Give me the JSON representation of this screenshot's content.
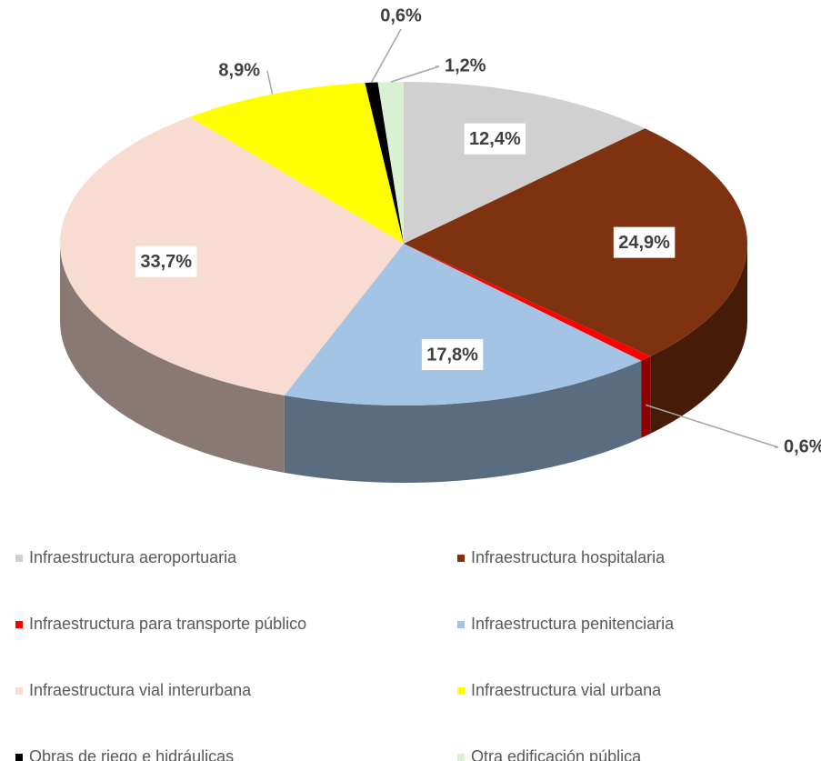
{
  "chart_data": {
    "type": "pie",
    "categories": [
      "Infraestructura aeroportuaria",
      "Infraestructura hospitalaria",
      "Infraestructura para transporte público",
      "Infraestructura penitenciaria",
      "Infraestructura vial interurbana",
      "Infraestructura vial urbana",
      "Obras de riego e hidráulicas",
      "Otra edificación pública"
    ],
    "values": [
      12.4,
      24.9,
      0.6,
      17.8,
      33.7,
      8.9,
      0.6,
      1.2
    ],
    "value_labels": [
      "12,4%",
      "24,9%",
      "0,6%",
      "17,8%",
      "33,7%",
      "8,9%",
      "0,6%",
      "1,2%"
    ],
    "colors": [
      "#d0d0d0",
      "#7f320f",
      "#ff0000",
      "#a4c4e6",
      "#f8dcd2",
      "#ffff00",
      "#000000",
      "#d9f0d3"
    ],
    "legend": "bottom"
  }
}
